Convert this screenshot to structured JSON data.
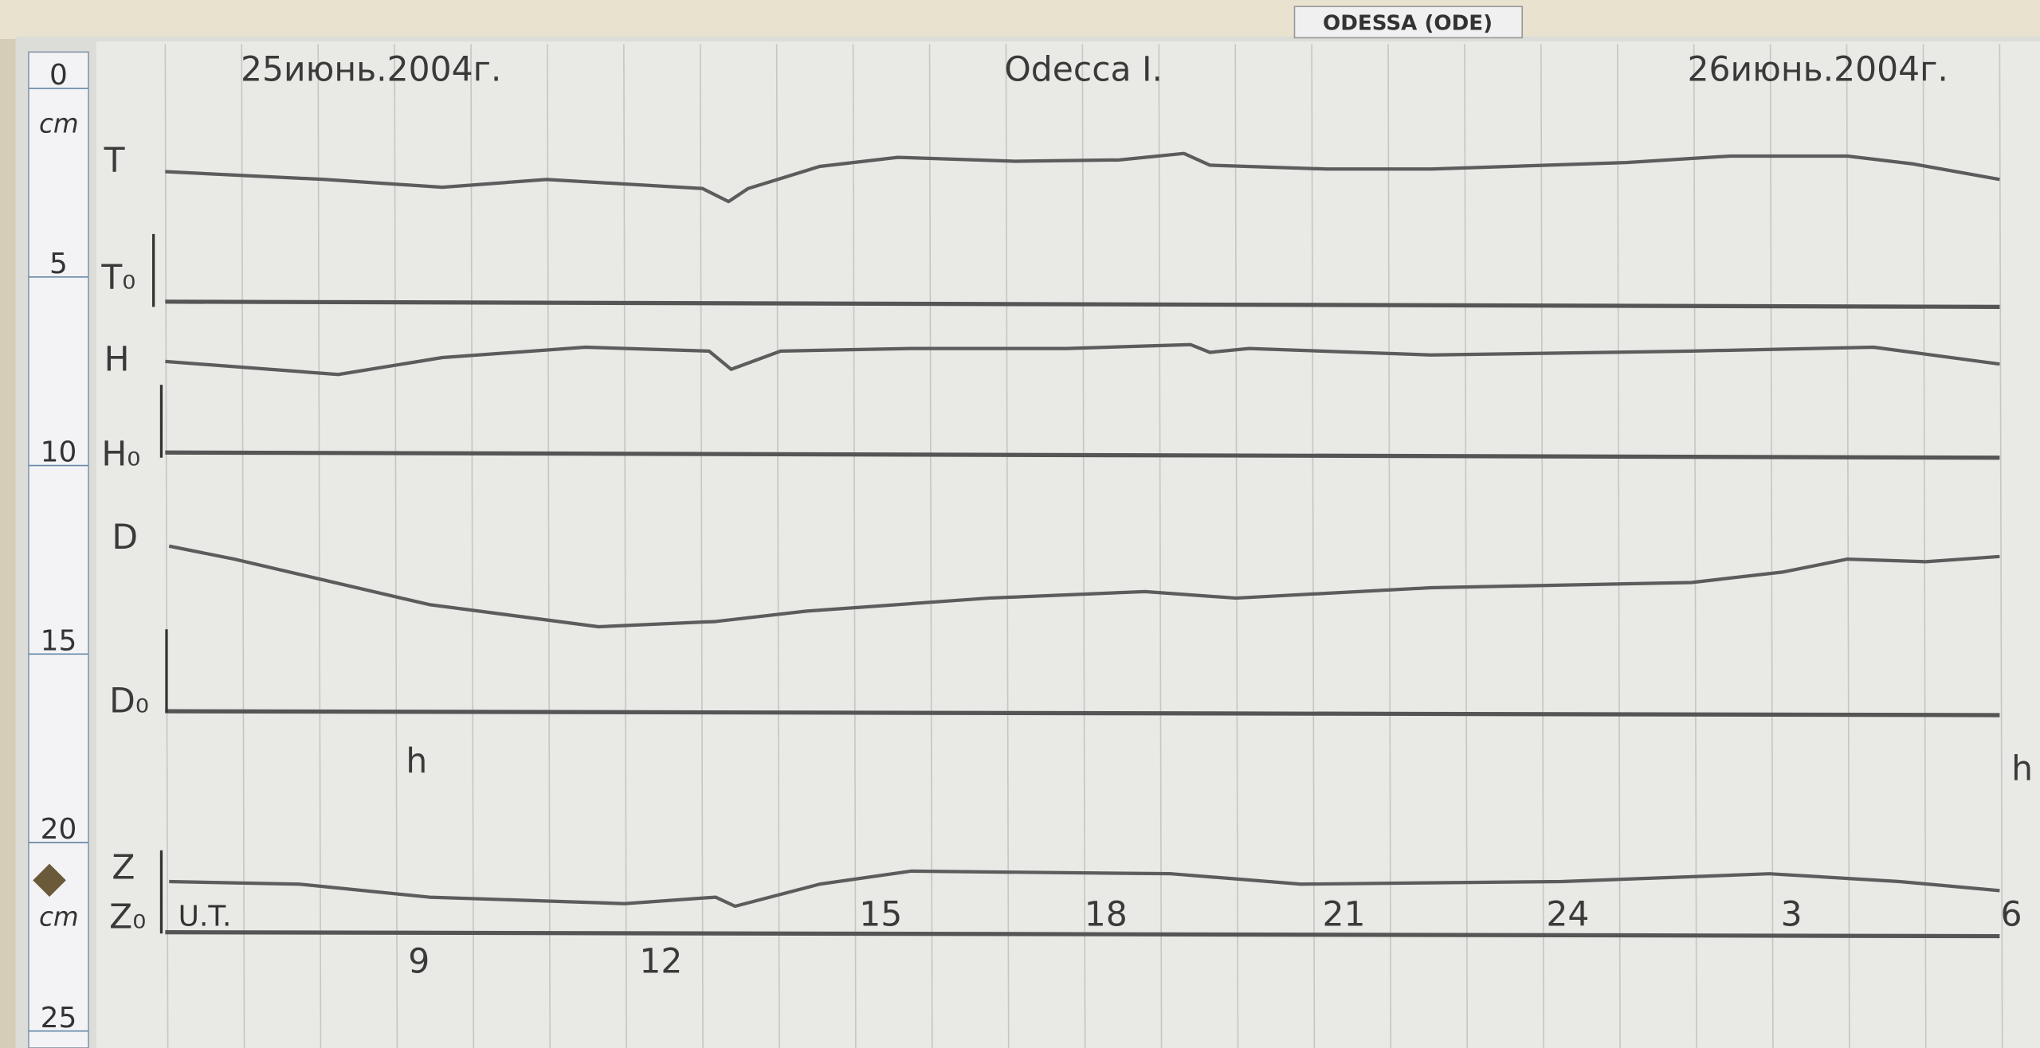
{
  "header": {
    "station": "ODESSA (ODE)",
    "date_start": "25июнь.2004г.",
    "place": "Odecca I.",
    "date_end": "26июнь.2004г."
  },
  "ruler": {
    "marks": [
      "0",
      "5",
      "10",
      "15",
      "20",
      "25"
    ],
    "unit_top": "cm",
    "unit_bottom": "cm"
  },
  "traces": [
    {
      "label": "T",
      "base": "T₀"
    },
    {
      "label": "H",
      "base": "H₀"
    },
    {
      "label": "D",
      "base": "D₀"
    },
    {
      "label": "Z",
      "base": "Z₀"
    }
  ],
  "hour_marks": [
    "h",
    "h"
  ],
  "time_axis": {
    "label": "U.T.",
    "hours": [
      "9",
      "12",
      "15",
      "18",
      "21",
      "24",
      "3",
      "6"
    ]
  }
}
